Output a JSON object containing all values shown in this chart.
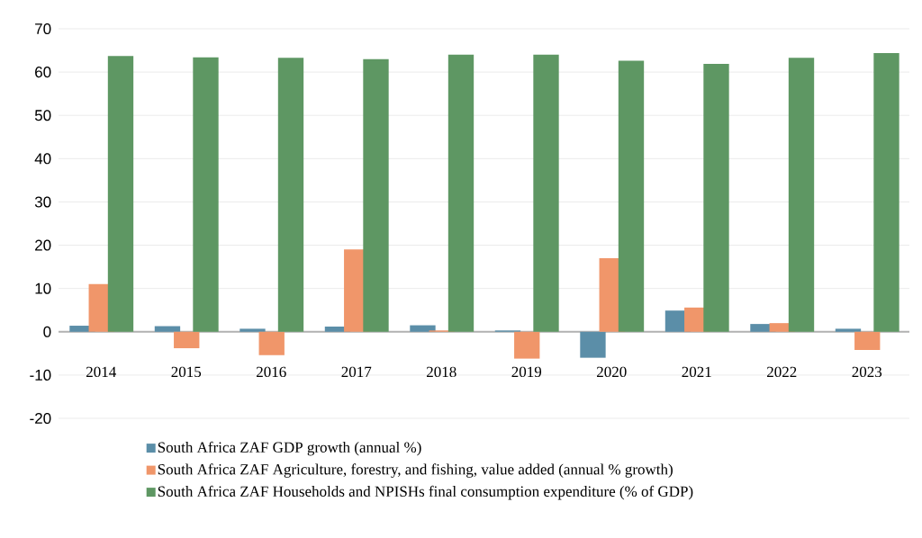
{
  "chart_data": {
    "type": "bar",
    "categories": [
      "2014",
      "2015",
      "2016",
      "2017",
      "2018",
      "2019",
      "2020",
      "2021",
      "2022",
      "2023"
    ],
    "series": [
      {
        "name": "South Africa ZAF GDP growth (annual %)",
        "color": "#5b8ea8",
        "values": [
          1.4,
          1.3,
          0.7,
          1.2,
          1.5,
          0.3,
          -6.0,
          4.9,
          1.8,
          0.7
        ]
      },
      {
        "name": "South Africa ZAF Agriculture, forestry, and fishing, value added (annual % growth)",
        "color": "#f0966a",
        "values": [
          11.0,
          -3.8,
          -5.4,
          19.0,
          0.3,
          -6.2,
          17.0,
          5.6,
          2.0,
          -4.2
        ]
      },
      {
        "name": "South Africa ZAF Households and NPISHs final consumption expenditure (% of GDP)",
        "color": "#5e9763",
        "values": [
          63.7,
          63.4,
          63.3,
          63.0,
          64.0,
          64.0,
          62.6,
          61.9,
          63.3,
          64.4
        ]
      }
    ],
    "ylim": [
      -20,
      70
    ],
    "yticks": [
      -20,
      -10,
      0,
      10,
      20,
      30,
      40,
      50,
      60,
      70
    ],
    "grid": "y",
    "legend": "bottom"
  }
}
